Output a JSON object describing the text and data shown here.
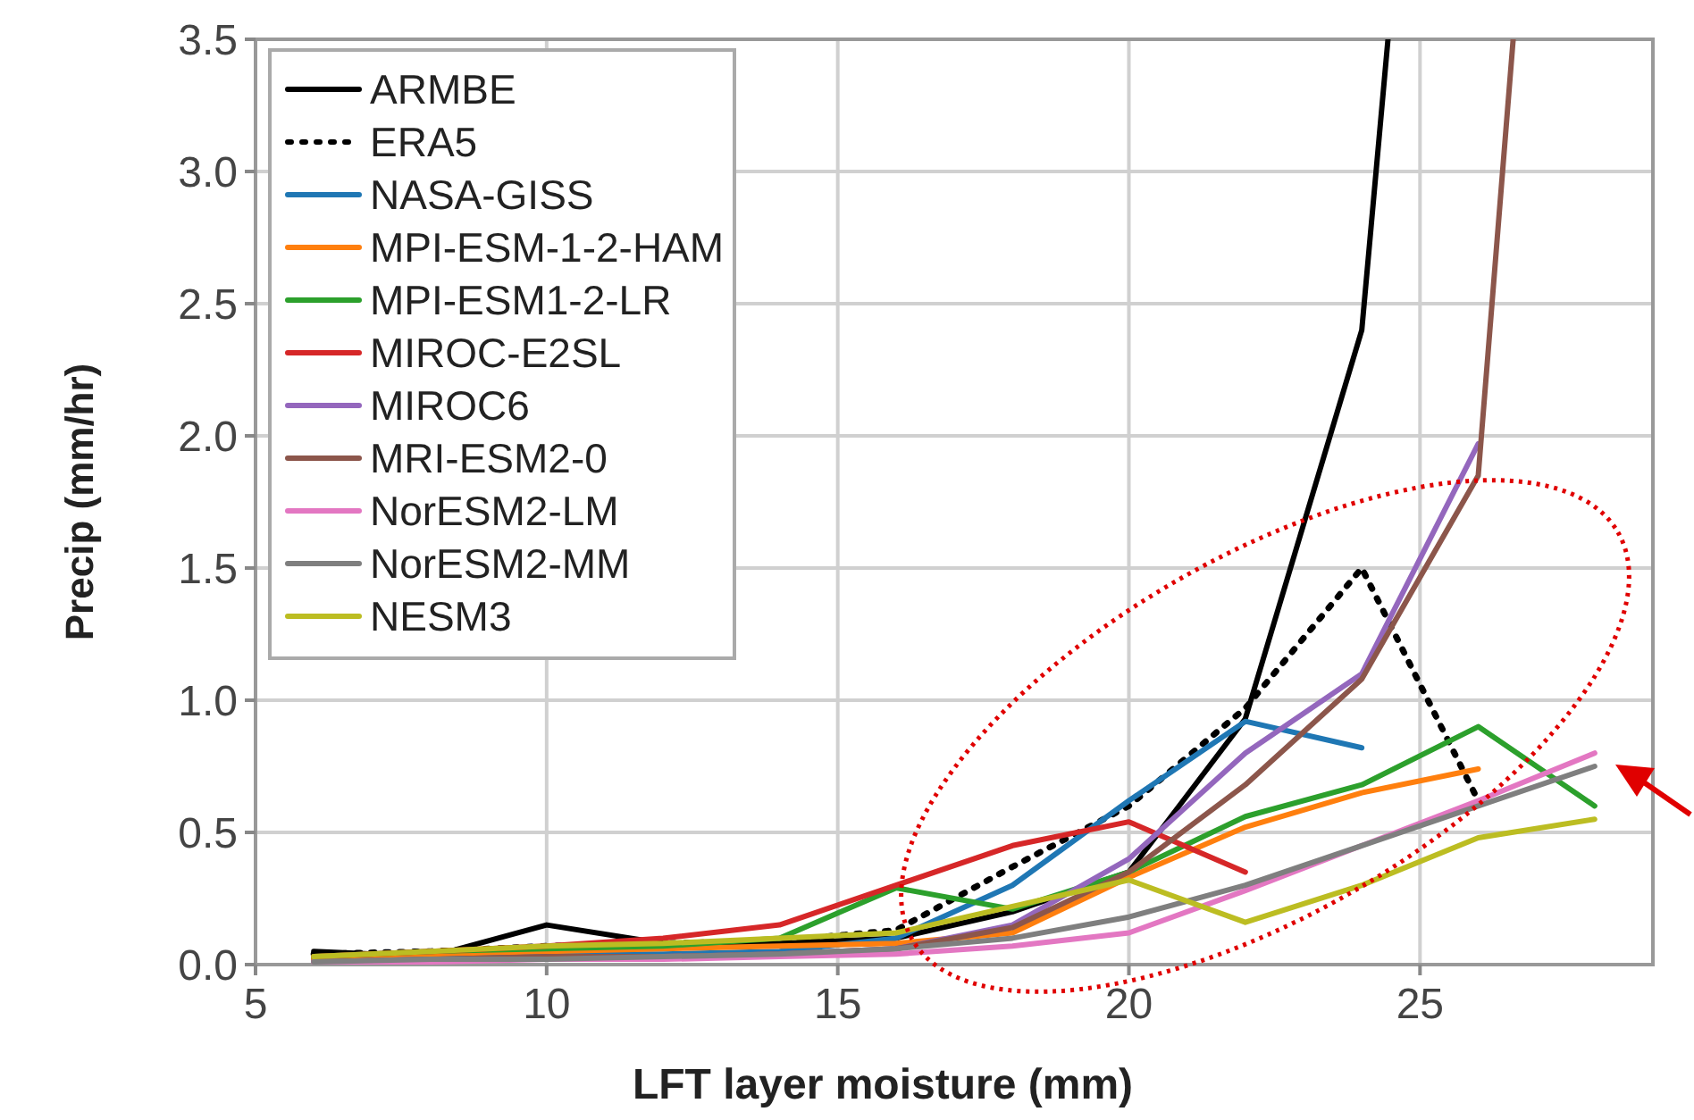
{
  "chart_data": {
    "type": "line",
    "xlabel": "LFT layer moisture (mm)",
    "ylabel": "Precip (mm/hr)",
    "xlim": [
      5,
      29
    ],
    "ylim": [
      0,
      3.5
    ],
    "xticks": [
      5,
      10,
      15,
      20,
      25
    ],
    "yticks": [
      {
        "value": 0,
        "label": "0.0"
      },
      {
        "value": 0.5,
        "label": "0.5"
      },
      {
        "value": 1,
        "label": "1.0"
      },
      {
        "value": 1.5,
        "label": "1.5"
      },
      {
        "value": 2,
        "label": "2.0"
      },
      {
        "value": 2.5,
        "label": "2.5"
      },
      {
        "value": 3,
        "label": "3.0"
      },
      {
        "value": 3.5,
        "label": "3.5"
      }
    ],
    "grid": true,
    "legend": "top left",
    "series": [
      {
        "name": "ARMBE",
        "color": "#000000",
        "line_style": "solid",
        "x": [
          6,
          8,
          10,
          12,
          14,
          16,
          18,
          20,
          22,
          24,
          24.45
        ],
        "values": [
          0.05,
          0.03,
          0.15,
          0.08,
          0.08,
          0.1,
          0.2,
          0.35,
          0.93,
          2.4,
          3.5
        ]
      },
      {
        "name": "ERA5",
        "color": "#000000",
        "line_style": "dotted",
        "x": [
          6,
          8,
          10,
          12,
          14,
          16,
          18,
          20,
          22,
          24,
          26
        ],
        "values": [
          0.04,
          0.05,
          0.07,
          0.08,
          0.09,
          0.13,
          0.37,
          0.6,
          0.97,
          1.5,
          0.62
        ]
      },
      {
        "name": "NASA-GISS",
        "color": "#1f77b4",
        "line_style": "solid",
        "x": [
          6,
          8,
          10,
          12,
          14,
          16,
          18,
          20,
          22,
          24
        ],
        "values": [
          0.02,
          0.03,
          0.04,
          0.04,
          0.05,
          0.1,
          0.3,
          0.62,
          0.92,
          0.82
        ]
      },
      {
        "name": "MPI-ESM-1-2-HAM",
        "color": "#ff7f0e",
        "line_style": "solid",
        "x": [
          6,
          8,
          10,
          12,
          14,
          16,
          18,
          20,
          22,
          24,
          26
        ],
        "values": [
          0.02,
          0.04,
          0.05,
          0.06,
          0.07,
          0.08,
          0.12,
          0.33,
          0.52,
          0.65,
          0.74
        ]
      },
      {
        "name": "MPI-ESM1-2-LR",
        "color": "#2ca02c",
        "line_style": "solid",
        "x": [
          6,
          8,
          10,
          12,
          14,
          16,
          18,
          20,
          22,
          24,
          26,
          28
        ],
        "values": [
          0.03,
          0.05,
          0.06,
          0.07,
          0.1,
          0.29,
          0.21,
          0.35,
          0.56,
          0.68,
          0.9,
          0.6
        ]
      },
      {
        "name": "MIROC-E2SL",
        "color": "#d62728",
        "line_style": "solid",
        "x": [
          6,
          8,
          10,
          12,
          14,
          16,
          18,
          20,
          22
        ],
        "values": [
          0.03,
          0.05,
          0.07,
          0.1,
          0.15,
          0.3,
          0.45,
          0.54,
          0.35
        ]
      },
      {
        "name": "MIROC6",
        "color": "#9467bd",
        "line_style": "solid",
        "x": [
          6,
          8,
          10,
          12,
          14,
          16,
          18,
          20,
          22,
          24,
          26
        ],
        "values": [
          0.01,
          0.02,
          0.02,
          0.03,
          0.04,
          0.06,
          0.15,
          0.4,
          0.8,
          1.1,
          1.97
        ]
      },
      {
        "name": "MRI-ESM2-0",
        "color": "#8c564b",
        "line_style": "solid",
        "x": [
          6,
          8,
          10,
          12,
          14,
          16,
          18,
          20,
          22,
          24,
          26,
          26.6
        ],
        "values": [
          0.01,
          0.02,
          0.03,
          0.03,
          0.04,
          0.06,
          0.14,
          0.35,
          0.68,
          1.08,
          1.85,
          3.5
        ]
      },
      {
        "name": "NorESM2-LM",
        "color": "#e377c2",
        "line_style": "solid",
        "x": [
          6,
          8,
          10,
          12,
          14,
          16,
          18,
          20,
          22,
          24,
          26,
          28
        ],
        "values": [
          0.01,
          0.01,
          0.02,
          0.02,
          0.03,
          0.04,
          0.07,
          0.12,
          0.28,
          0.45,
          0.62,
          0.8
        ]
      },
      {
        "name": "NorESM2-MM",
        "color": "#7f7f7f",
        "line_style": "solid",
        "x": [
          6,
          8,
          10,
          12,
          14,
          16,
          18,
          20,
          22,
          24,
          26,
          28
        ],
        "values": [
          0.01,
          0.02,
          0.02,
          0.03,
          0.04,
          0.06,
          0.1,
          0.18,
          0.3,
          0.45,
          0.6,
          0.75
        ]
      },
      {
        "name": "NESM3",
        "color": "#bcbd22",
        "line_style": "solid",
        "x": [
          6,
          8,
          10,
          12,
          14,
          16,
          18,
          20,
          22,
          24,
          26,
          28
        ],
        "values": [
          0.03,
          0.05,
          0.07,
          0.08,
          0.1,
          0.12,
          0.22,
          0.32,
          0.16,
          0.3,
          0.48,
          0.55
        ]
      }
    ]
  }
}
